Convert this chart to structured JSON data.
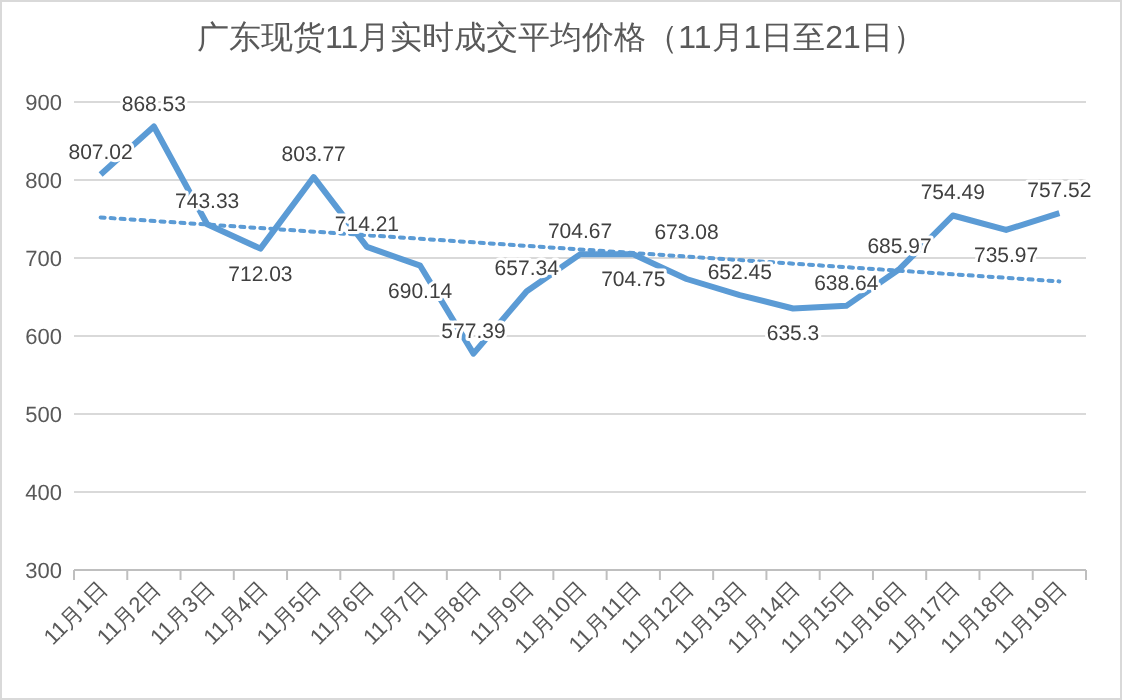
{
  "chart_data": {
    "type": "line",
    "title": "广东现货11月实时成交平均价格（11月1日至21日）",
    "categories": [
      "11月1日",
      "11月2日",
      "11月3日",
      "11月4日",
      "11月5日",
      "11月6日",
      "11月7日",
      "11月8日",
      "11月9日",
      "11月10日",
      "11月11日",
      "11月12日",
      "11月13日",
      "11月14日",
      "11月15日",
      "11月16日",
      "11月17日",
      "11月18日",
      "11月19日"
    ],
    "series": [
      {
        "color": "#5b9bd5",
        "line_style": "solid",
        "values": [
          807.02,
          868.53,
          743.33,
          712.03,
          803.77,
          714.21,
          690.14,
          577.39,
          657.34,
          704.67,
          704.75,
          673.08,
          652.45,
          635.3,
          638.64,
          685.97,
          754.49,
          735.97,
          757.52
        ],
        "value_labels": [
          "807.02",
          "868.53",
          "743.33",
          "712.03",
          "803.77",
          "714.21",
          "690.14",
          "577.39",
          "657.34",
          "704.67",
          "704.75",
          "673.08",
          "652.45",
          "635.3",
          "638.64",
          "685.97",
          "754.49",
          "735.97",
          "757.52"
        ]
      },
      {
        "type": "line",
        "color": "#5b9bd5",
        "line_style": "dotted",
        "x": [
          "11月1日",
          "11月19日"
        ],
        "values": [
          752,
          670
        ]
      }
    ],
    "ylim": [
      300,
      900
    ],
    "yticks": [
      300,
      400,
      500,
      600,
      700,
      800,
      900
    ],
    "grid": "y",
    "marker": "none"
  }
}
